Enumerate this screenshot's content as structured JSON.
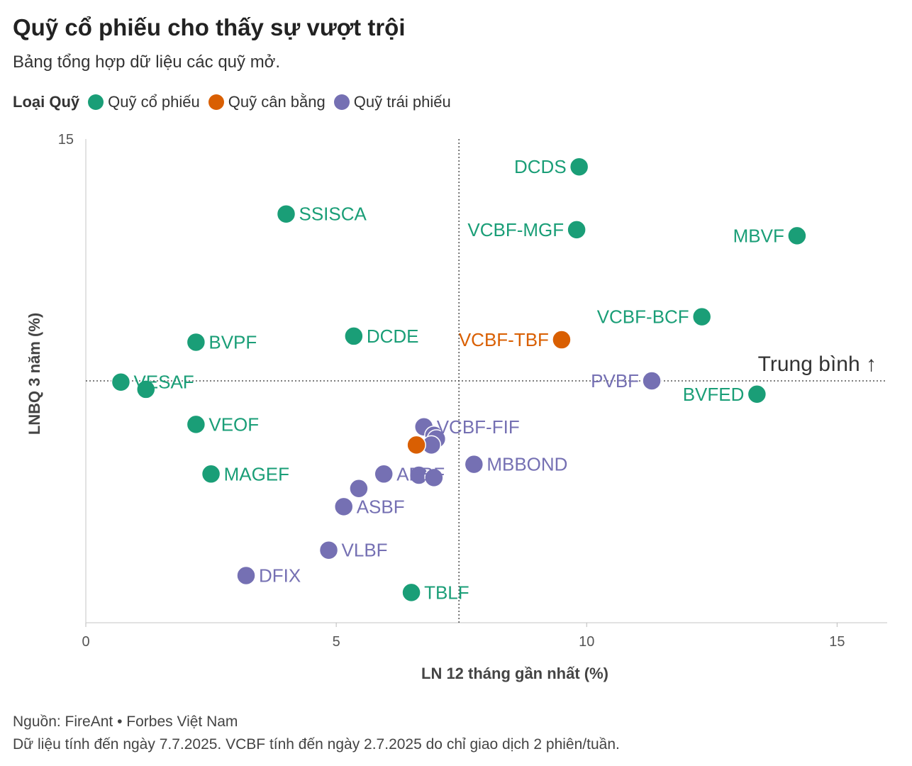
{
  "title": "Quỹ cổ phiếu cho thấy sự vượt trội",
  "subtitle": "Bảng tổng hợp dữ liệu các quỹ mở.",
  "legend": {
    "title": "Loại Quỹ",
    "items": [
      {
        "label": "Quỹ cổ phiếu",
        "color": "#1a9e77"
      },
      {
        "label": "Quỹ cân bằng",
        "color": "#d95f02"
      },
      {
        "label": "Quỹ trái phiếu",
        "color": "#7570b3"
      }
    ]
  },
  "footer": {
    "source": "Nguồn: FireAnt • Forbes Việt Nam",
    "note": "Dữ liệu tính đến ngày 7.7.2025. VCBF tính đến ngày 2.7.2025 do chỉ giao dịch 2 phiên/tuần."
  },
  "chart_data": {
    "type": "scatter",
    "xlabel": "LN 12 tháng gần nhất (%)",
    "ylabel": "LNBQ 3 năm (%)",
    "xlim": [
      0,
      16
    ],
    "ylim": [
      -5,
      15
    ],
    "xticks": [
      0,
      5,
      10,
      15
    ],
    "yticks": [
      15
    ],
    "mean_x": 7.45,
    "mean_y": 5.0,
    "mean_label": "Trung bình ↑",
    "colors": {
      "equity": "#1a9e77",
      "balanced": "#d95f02",
      "bond": "#7570b3"
    },
    "points": [
      {
        "label": "DCDS",
        "x": 9.85,
        "y": 13.85,
        "group": "equity"
      },
      {
        "label": "SSISCA",
        "x": 4.0,
        "y": 11.9,
        "group": "equity"
      },
      {
        "label": "VCBF-MGF",
        "x": 9.8,
        "y": 11.25,
        "group": "equity"
      },
      {
        "label": "MBVF",
        "x": 14.2,
        "y": 11.0,
        "group": "equity"
      },
      {
        "label": "VCBF-BCF",
        "x": 12.3,
        "y": 7.65,
        "group": "equity"
      },
      {
        "label": "VCBF-TBF",
        "x": 9.5,
        "y": 6.7,
        "group": "balanced"
      },
      {
        "label": "DCDE",
        "x": 5.35,
        "y": 6.85,
        "group": "equity"
      },
      {
        "label": "BVPF",
        "x": 2.2,
        "y": 6.6,
        "group": "equity"
      },
      {
        "label": "VESAF",
        "x": 0.7,
        "y": 4.95,
        "group": "equity"
      },
      {
        "label": "",
        "x": 1.2,
        "y": 4.65,
        "group": "equity"
      },
      {
        "label": "PVBF",
        "x": 11.3,
        "y": 5.0,
        "group": "bond"
      },
      {
        "label": "BVFED",
        "x": 13.4,
        "y": 4.45,
        "group": "equity"
      },
      {
        "label": "VEOF",
        "x": 2.2,
        "y": 3.2,
        "group": "equity"
      },
      {
        "label": "VCBF-FIF",
        "x": 6.75,
        "y": 3.1,
        "group": "bond"
      },
      {
        "label": "",
        "x": 6.95,
        "y": 2.75,
        "group": "bond"
      },
      {
        "label": "",
        "x": 7.0,
        "y": 2.6,
        "group": "bond"
      },
      {
        "label": "",
        "x": 6.9,
        "y": 2.35,
        "group": "bond"
      },
      {
        "label": "",
        "x": 6.6,
        "y": 2.35,
        "group": "balanced"
      },
      {
        "label": "MBBOND",
        "x": 7.75,
        "y": 1.55,
        "group": "bond"
      },
      {
        "label": "ABBF",
        "x": 5.95,
        "y": 1.15,
        "group": "bond"
      },
      {
        "label": "",
        "x": 6.65,
        "y": 1.1,
        "group": "bond"
      },
      {
        "label": "",
        "x": 6.95,
        "y": 1.0,
        "group": "bond"
      },
      {
        "label": "",
        "x": 5.45,
        "y": 0.55,
        "group": "bond"
      },
      {
        "label": "MAGEF",
        "x": 2.5,
        "y": 1.15,
        "group": "equity"
      },
      {
        "label": "ASBF",
        "x": 5.15,
        "y": -0.2,
        "group": "bond"
      },
      {
        "label": "VLBF",
        "x": 4.85,
        "y": -2.0,
        "group": "bond"
      },
      {
        "label": "DFIX",
        "x": 3.2,
        "y": -3.05,
        "group": "bond"
      },
      {
        "label": "TBLF",
        "x": 6.5,
        "y": -3.75,
        "group": "equity"
      }
    ]
  }
}
